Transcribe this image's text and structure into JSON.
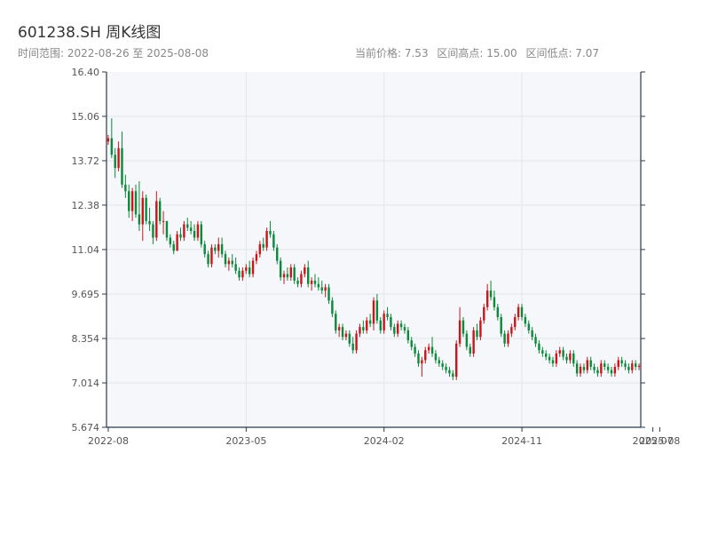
{
  "header": {
    "title": "601238.SH 周K线图",
    "range_text": "时间范围: 2022-08-26 至 2025-08-08",
    "current_price_text": "当前价格: 7.53",
    "range_high_text": "区间高点: 15.00",
    "range_low_text": "区间低点: 7.07"
  },
  "colors": {
    "up": "#c8161d",
    "down": "#0a8a3a",
    "plot_bg": "#f5f7fa",
    "grid": "#e3e6ea",
    "axis": "#2b3a4a"
  },
  "chart_data": {
    "type": "candlestick",
    "title": "601238.SH 周K线图",
    "xlabel": "",
    "ylabel": "",
    "ylim": [
      5.674,
      16.4
    ],
    "yticks": [
      "16.40",
      "15.06",
      "13.72",
      "12.38",
      "11.04",
      "9.695",
      "8.354",
      "7.014",
      "5.674"
    ],
    "xticks": [
      {
        "label": "2022-08",
        "index": 0
      },
      {
        "label": "2023-05",
        "index": 40
      },
      {
        "label": "2024-02",
        "index": 80
      },
      {
        "label": "2024-11",
        "index": 120
      },
      {
        "label": "2025-07",
        "index": 158
      },
      {
        "label": "2025-08",
        "index": 160
      }
    ],
    "grid": true,
    "legend": "none",
    "candles": [
      [
        14.3,
        14.5,
        14.2,
        14.4
      ],
      [
        14.4,
        15.0,
        13.8,
        13.9
      ],
      [
        13.9,
        14.1,
        13.2,
        13.5
      ],
      [
        13.5,
        14.3,
        13.4,
        14.1
      ],
      [
        14.1,
        14.6,
        12.9,
        13.0
      ],
      [
        13.0,
        13.3,
        12.6,
        12.8
      ],
      [
        12.8,
        13.0,
        12.0,
        12.2
      ],
      [
        12.2,
        12.9,
        11.9,
        12.8
      ],
      [
        12.8,
        13.0,
        12.0,
        12.1
      ],
      [
        12.1,
        13.1,
        11.6,
        11.8
      ],
      [
        11.8,
        12.8,
        11.3,
        12.6
      ],
      [
        12.6,
        12.7,
        11.8,
        11.9
      ],
      [
        11.9,
        12.3,
        11.6,
        11.8
      ],
      [
        11.8,
        11.9,
        11.2,
        11.4
      ],
      [
        11.4,
        12.8,
        11.3,
        12.5
      ],
      [
        12.5,
        12.6,
        11.8,
        11.9
      ],
      [
        11.9,
        12.2,
        11.5,
        11.9
      ],
      [
        11.9,
        11.9,
        11.3,
        11.4
      ],
      [
        11.4,
        11.5,
        11.1,
        11.2
      ],
      [
        11.2,
        11.3,
        10.9,
        11.0
      ],
      [
        11.0,
        11.6,
        11.0,
        11.5
      ],
      [
        11.5,
        11.7,
        11.3,
        11.4
      ],
      [
        11.4,
        11.9,
        11.3,
        11.8
      ],
      [
        11.8,
        12.0,
        11.6,
        11.7
      ],
      [
        11.7,
        11.9,
        11.5,
        11.6
      ],
      [
        11.6,
        11.8,
        11.3,
        11.4
      ],
      [
        11.4,
        11.9,
        11.3,
        11.8
      ],
      [
        11.8,
        11.9,
        11.1,
        11.2
      ],
      [
        11.2,
        11.3,
        10.8,
        10.9
      ],
      [
        10.9,
        11.0,
        10.5,
        10.6
      ],
      [
        10.6,
        11.2,
        10.5,
        11.1
      ],
      [
        11.1,
        11.2,
        10.9,
        11.0
      ],
      [
        11.0,
        11.4,
        10.8,
        11.2
      ],
      [
        11.2,
        11.4,
        10.8,
        10.9
      ],
      [
        10.9,
        11.0,
        10.5,
        10.6
      ],
      [
        10.6,
        10.8,
        10.4,
        10.7
      ],
      [
        10.7,
        10.9,
        10.5,
        10.6
      ],
      [
        10.6,
        10.8,
        10.3,
        10.4
      ],
      [
        10.4,
        10.5,
        10.1,
        10.2
      ],
      [
        10.2,
        10.5,
        10.1,
        10.4
      ],
      [
        10.4,
        10.6,
        10.3,
        10.5
      ],
      [
        10.5,
        10.7,
        10.2,
        10.3
      ],
      [
        10.3,
        10.8,
        10.2,
        10.7
      ],
      [
        10.7,
        11.0,
        10.6,
        10.9
      ],
      [
        10.9,
        11.3,
        10.8,
        11.2
      ],
      [
        11.2,
        11.4,
        11.0,
        11.1
      ],
      [
        11.1,
        11.7,
        11.0,
        11.6
      ],
      [
        11.6,
        11.9,
        11.4,
        11.5
      ],
      [
        11.5,
        11.6,
        11.0,
        11.1
      ],
      [
        11.1,
        11.2,
        10.6,
        10.7
      ],
      [
        10.7,
        10.8,
        10.1,
        10.2
      ],
      [
        10.2,
        10.4,
        10.0,
        10.3
      ],
      [
        10.3,
        10.5,
        10.1,
        10.2
      ],
      [
        10.2,
        10.6,
        10.1,
        10.5
      ],
      [
        10.5,
        10.6,
        10.0,
        10.1
      ],
      [
        10.1,
        10.2,
        9.9,
        10.0
      ],
      [
        10.0,
        10.4,
        9.9,
        10.3
      ],
      [
        10.3,
        10.6,
        10.2,
        10.5
      ],
      [
        10.5,
        10.7,
        9.9,
        10.0
      ],
      [
        10.0,
        10.2,
        9.8,
        10.1
      ],
      [
        10.1,
        10.3,
        9.9,
        10.0
      ],
      [
        10.0,
        10.2,
        9.8,
        9.9
      ],
      [
        9.9,
        10.1,
        9.7,
        9.8
      ],
      [
        9.8,
        10.0,
        9.6,
        9.9
      ],
      [
        9.9,
        10.0,
        9.4,
        9.5
      ],
      [
        9.5,
        9.6,
        9.0,
        9.1
      ],
      [
        9.1,
        9.2,
        8.5,
        8.6
      ],
      [
        8.6,
        8.8,
        8.4,
        8.7
      ],
      [
        8.7,
        8.8,
        8.3,
        8.4
      ],
      [
        8.4,
        8.6,
        8.3,
        8.5
      ],
      [
        8.5,
        8.6,
        8.1,
        8.2
      ],
      [
        8.2,
        8.4,
        7.9,
        8.0
      ],
      [
        8.0,
        8.6,
        7.9,
        8.5
      ],
      [
        8.5,
        8.8,
        8.4,
        8.7
      ],
      [
        8.7,
        8.9,
        8.5,
        8.6
      ],
      [
        8.6,
        9.0,
        8.5,
        8.9
      ],
      [
        8.9,
        9.1,
        8.7,
        8.8
      ],
      [
        8.8,
        9.6,
        8.6,
        9.5
      ],
      [
        9.5,
        9.7,
        8.8,
        8.9
      ],
      [
        8.9,
        9.0,
        8.5,
        8.6
      ],
      [
        8.6,
        9.2,
        8.5,
        9.1
      ],
      [
        9.1,
        9.3,
        8.9,
        9.0
      ],
      [
        9.0,
        9.1,
        8.6,
        8.7
      ],
      [
        8.7,
        8.8,
        8.4,
        8.5
      ],
      [
        8.5,
        8.9,
        8.4,
        8.8
      ],
      [
        8.8,
        8.9,
        8.6,
        8.7
      ],
      [
        8.7,
        8.8,
        8.5,
        8.6
      ],
      [
        8.6,
        8.7,
        8.2,
        8.3
      ],
      [
        8.3,
        8.4,
        8.0,
        8.1
      ],
      [
        8.1,
        8.2,
        7.8,
        7.9
      ],
      [
        7.9,
        8.0,
        7.5,
        7.6
      ],
      [
        7.6,
        7.8,
        7.2,
        7.7
      ],
      [
        7.7,
        8.1,
        7.6,
        8.0
      ],
      [
        8.0,
        8.2,
        7.9,
        8.1
      ],
      [
        8.1,
        8.4,
        7.8,
        7.9
      ],
      [
        7.9,
        8.0,
        7.6,
        7.7
      ],
      [
        7.7,
        7.8,
        7.5,
        7.6
      ],
      [
        7.6,
        7.7,
        7.4,
        7.5
      ],
      [
        7.5,
        7.6,
        7.3,
        7.4
      ],
      [
        7.4,
        7.5,
        7.2,
        7.3
      ],
      [
        7.3,
        7.4,
        7.1,
        7.2
      ],
      [
        7.2,
        8.3,
        7.1,
        8.2
      ],
      [
        8.2,
        9.3,
        8.1,
        8.9
      ],
      [
        8.9,
        9.0,
        8.4,
        8.5
      ],
      [
        8.5,
        8.6,
        8.0,
        8.1
      ],
      [
        8.1,
        8.2,
        7.8,
        7.9
      ],
      [
        7.9,
        8.7,
        7.8,
        8.6
      ],
      [
        8.6,
        8.8,
        8.3,
        8.4
      ],
      [
        8.4,
        9.0,
        8.3,
        8.9
      ],
      [
        8.9,
        9.4,
        8.8,
        9.3
      ],
      [
        9.3,
        10.0,
        9.2,
        9.8
      ],
      [
        9.8,
        10.1,
        9.5,
        9.6
      ],
      [
        9.6,
        9.8,
        9.2,
        9.3
      ],
      [
        9.3,
        9.4,
        8.9,
        9.0
      ],
      [
        9.0,
        9.1,
        8.4,
        8.5
      ],
      [
        8.5,
        8.6,
        8.1,
        8.2
      ],
      [
        8.2,
        8.6,
        8.1,
        8.5
      ],
      [
        8.5,
        8.8,
        8.4,
        8.7
      ],
      [
        8.7,
        9.1,
        8.6,
        9.0
      ],
      [
        9.0,
        9.4,
        8.9,
        9.3
      ],
      [
        9.3,
        9.4,
        8.9,
        9.0
      ],
      [
        9.0,
        9.1,
        8.7,
        8.8
      ],
      [
        8.8,
        8.9,
        8.5,
        8.6
      ],
      [
        8.6,
        8.7,
        8.3,
        8.4
      ],
      [
        8.4,
        8.5,
        8.1,
        8.2
      ],
      [
        8.2,
        8.3,
        7.9,
        8.0
      ],
      [
        8.0,
        8.1,
        7.8,
        7.9
      ],
      [
        7.9,
        8.0,
        7.7,
        7.8
      ],
      [
        7.8,
        7.9,
        7.6,
        7.7
      ],
      [
        7.7,
        7.8,
        7.5,
        7.6
      ],
      [
        7.6,
        8.0,
        7.5,
        7.9
      ],
      [
        7.9,
        8.1,
        7.8,
        8.0
      ],
      [
        8.0,
        8.1,
        7.7,
        7.8
      ],
      [
        7.8,
        7.9,
        7.6,
        7.7
      ],
      [
        7.7,
        8.0,
        7.6,
        7.9
      ],
      [
        7.9,
        8.0,
        7.5,
        7.6
      ],
      [
        7.6,
        7.7,
        7.2,
        7.3
      ],
      [
        7.3,
        7.6,
        7.2,
        7.5
      ],
      [
        7.5,
        7.6,
        7.3,
        7.4
      ],
      [
        7.4,
        7.8,
        7.3,
        7.7
      ],
      [
        7.7,
        7.8,
        7.4,
        7.5
      ],
      [
        7.5,
        7.6,
        7.3,
        7.4
      ],
      [
        7.4,
        7.5,
        7.2,
        7.3
      ],
      [
        7.3,
        7.7,
        7.2,
        7.6
      ],
      [
        7.6,
        7.7,
        7.4,
        7.5
      ],
      [
        7.5,
        7.6,
        7.3,
        7.4
      ],
      [
        7.4,
        7.5,
        7.2,
        7.3
      ],
      [
        7.3,
        7.6,
        7.2,
        7.5
      ],
      [
        7.5,
        7.8,
        7.4,
        7.7
      ],
      [
        7.7,
        7.8,
        7.5,
        7.6
      ],
      [
        7.6,
        7.7,
        7.4,
        7.5
      ],
      [
        7.5,
        7.6,
        7.3,
        7.4
      ],
      [
        7.4,
        7.7,
        7.3,
        7.6
      ],
      [
        7.6,
        7.7,
        7.4,
        7.5
      ],
      [
        7.5,
        7.6,
        7.4,
        7.53
      ]
    ]
  }
}
